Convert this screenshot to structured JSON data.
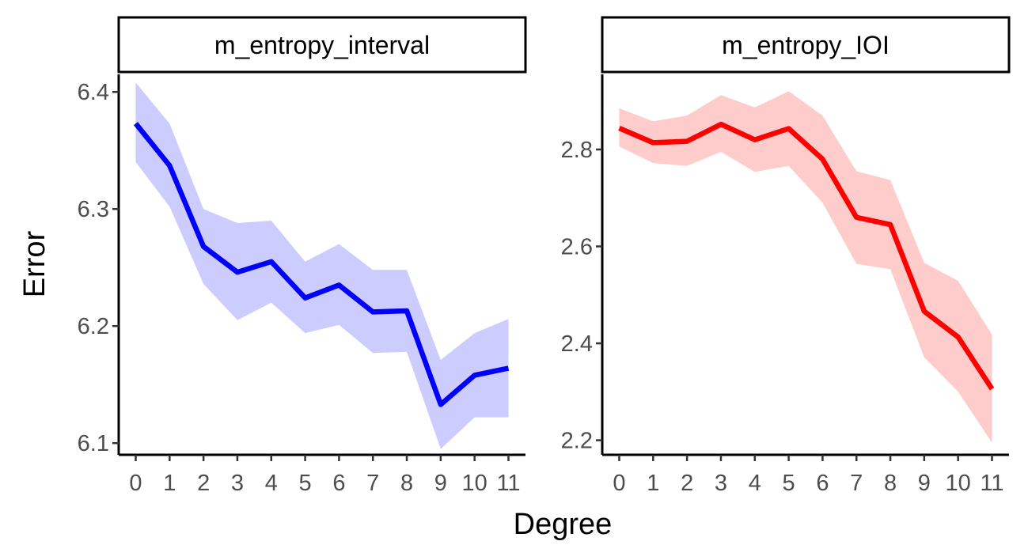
{
  "chart_data": {
    "type": "line",
    "xlabel": "Degree",
    "ylabel": "Error",
    "facet_titles": [
      "m_entropy_interval",
      "m_entropy_IOI"
    ],
    "x": [
      0,
      1,
      2,
      3,
      4,
      5,
      6,
      7,
      8,
      9,
      10,
      11
    ],
    "x_tick_labels": [
      "0",
      "1",
      "2",
      "3",
      "4",
      "5",
      "6",
      "7",
      "8",
      "9",
      "10",
      "11"
    ],
    "panels": [
      {
        "title": "m_entropy_interval",
        "line_color": "#0000ff",
        "band_color": "#ccccff",
        "y_ticks": [
          6.1,
          6.2,
          6.3,
          6.4
        ],
        "y_tick_labels": [
          "6.1",
          "6.2",
          "6.3",
          "6.4"
        ],
        "ylim": [
          6.09,
          6.415
        ],
        "y": [
          6.373,
          6.337,
          6.268,
          6.246,
          6.255,
          6.224,
          6.235,
          6.212,
          6.213,
          6.133,
          6.158,
          6.164
        ],
        "lower": [
          6.34,
          6.302,
          6.236,
          6.205,
          6.22,
          6.194,
          6.201,
          6.177,
          6.178,
          6.095,
          6.122,
          6.122
        ],
        "upper": [
          6.408,
          6.373,
          6.3,
          6.288,
          6.29,
          6.255,
          6.27,
          6.248,
          6.248,
          6.171,
          6.194,
          6.206
        ]
      },
      {
        "title": "m_entropy_IOI",
        "line_color": "#ff0000",
        "band_color": "#ffcccc",
        "y_ticks": [
          2.2,
          2.4,
          2.6,
          2.8
        ],
        "y_tick_labels": [
          "2.2",
          "2.4",
          "2.6",
          "2.8"
        ],
        "ylim": [
          2.17,
          2.955
        ],
        "y": [
          2.844,
          2.814,
          2.817,
          2.852,
          2.82,
          2.843,
          2.78,
          2.66,
          2.645,
          2.466,
          2.413,
          2.306
        ],
        "lower": [
          2.806,
          2.772,
          2.766,
          2.795,
          2.754,
          2.766,
          2.69,
          2.564,
          2.553,
          2.371,
          2.3,
          2.195
        ],
        "upper": [
          2.885,
          2.858,
          2.87,
          2.912,
          2.887,
          2.92,
          2.87,
          2.755,
          2.737,
          2.566,
          2.529,
          2.418
        ]
      }
    ]
  }
}
